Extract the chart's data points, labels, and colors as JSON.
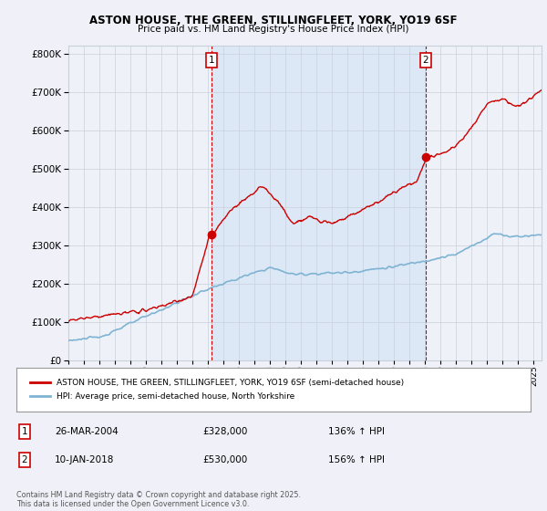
{
  "title1": "ASTON HOUSE, THE GREEN, STILLINGFLEET, YORK, YO19 6SF",
  "title2": "Price paid vs. HM Land Registry's House Price Index (HPI)",
  "legend_label1": "ASTON HOUSE, THE GREEN, STILLINGFLEET, YORK, YO19 6SF (semi-detached house)",
  "legend_label2": "HPI: Average price, semi-detached house, North Yorkshire",
  "footnote": "Contains HM Land Registry data © Crown copyright and database right 2025.\nThis data is licensed under the Open Government Licence v3.0.",
  "annotation1_date": "26-MAR-2004",
  "annotation1_price": "£328,000",
  "annotation1_hpi": "136% ↑ HPI",
  "annotation2_date": "10-JAN-2018",
  "annotation2_price": "£530,000",
  "annotation2_hpi": "156% ↑ HPI",
  "sale1_x": 2004.23,
  "sale1_y": 328000,
  "sale2_x": 2018.03,
  "sale2_y": 530000,
  "vline1_x": 2004.23,
  "vline2_x": 2018.03,
  "ylim": [
    0,
    820000
  ],
  "xlim_start": 1995,
  "xlim_end": 2025.5,
  "background_color": "#f0f0f8",
  "plot_bg_color": "#eef2f8",
  "shade_color": "#dce8f5",
  "red_color": "#cc0000",
  "blue_color": "#7fb3d3",
  "grid_color": "#c8d0dc"
}
